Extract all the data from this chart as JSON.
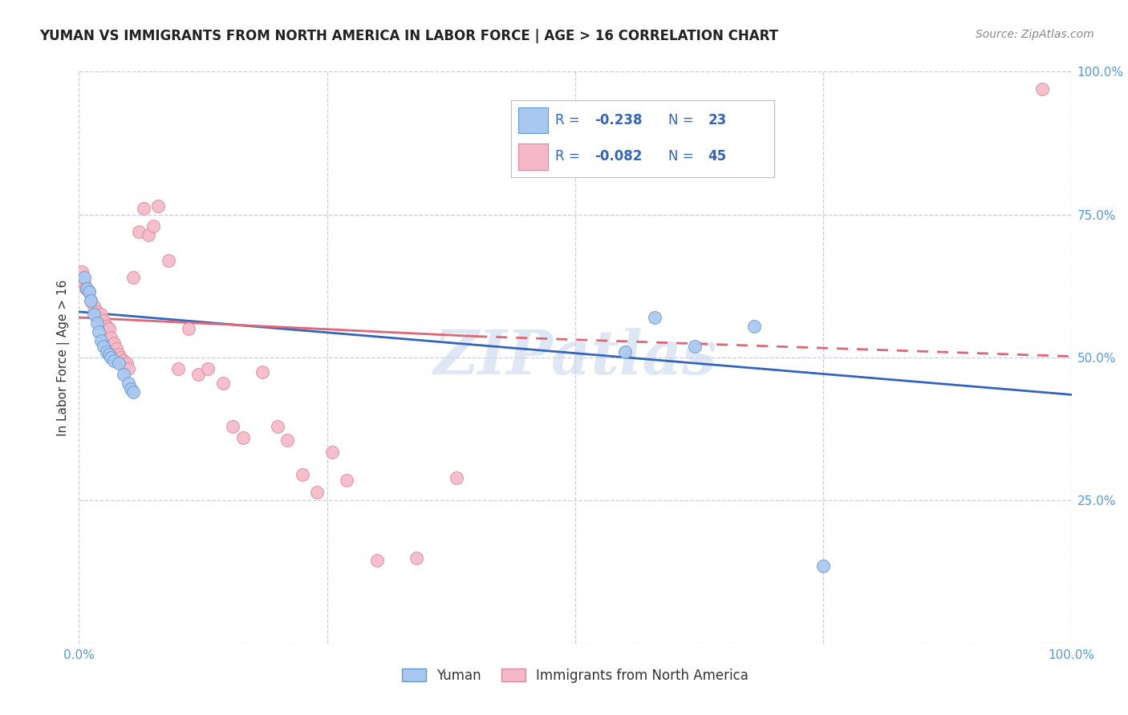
{
  "title": "YUMAN VS IMMIGRANTS FROM NORTH AMERICA IN LABOR FORCE | AGE > 16 CORRELATION CHART",
  "source": "Source: ZipAtlas.com",
  "ylabel": "In Labor Force | Age > 16",
  "watermark": "ZIPatlas",
  "legend_blue_r": "-0.238",
  "legend_blue_n": "23",
  "legend_pink_r": "-0.082",
  "legend_pink_n": "45",
  "legend_blue_label": "Yuman",
  "legend_pink_label": "Immigrants from North America",
  "blue_color": "#A8C8F0",
  "pink_color": "#F5B8C8",
  "blue_edge_color": "#6699CC",
  "pink_edge_color": "#DD8899",
  "blue_line_color": "#3366BB",
  "pink_line_color": "#DD6677",
  "background_color": "#FFFFFF",
  "grid_color": "#CCCCDD",
  "axis_label_color": "#5599DD",
  "legend_text_color": "#3366BB",
  "title_color": "#222222",
  "ylabel_color": "#333333",
  "source_color": "#888888",
  "blue_scatter_x": [
    0.005,
    0.008,
    0.01,
    0.012,
    0.015,
    0.018,
    0.02,
    0.022,
    0.025,
    0.028,
    0.03,
    0.032,
    0.035,
    0.04,
    0.045,
    0.05,
    0.052,
    0.055,
    0.55,
    0.58,
    0.62,
    0.68,
    0.75
  ],
  "blue_scatter_y": [
    0.64,
    0.62,
    0.615,
    0.6,
    0.575,
    0.56,
    0.545,
    0.53,
    0.52,
    0.51,
    0.505,
    0.5,
    0.495,
    0.49,
    0.47,
    0.455,
    0.445,
    0.44,
    0.51,
    0.57,
    0.52,
    0.555,
    0.135
  ],
  "pink_scatter_x": [
    0.003,
    0.005,
    0.007,
    0.01,
    0.012,
    0.015,
    0.018,
    0.02,
    0.022,
    0.025,
    0.028,
    0.03,
    0.032,
    0.035,
    0.038,
    0.04,
    0.042,
    0.045,
    0.048,
    0.05,
    0.055,
    0.06,
    0.065,
    0.07,
    0.075,
    0.08,
    0.09,
    0.1,
    0.11,
    0.12,
    0.13,
    0.145,
    0.155,
    0.165,
    0.185,
    0.2,
    0.21,
    0.225,
    0.24,
    0.255,
    0.27,
    0.3,
    0.34,
    0.38,
    0.97
  ],
  "pink_scatter_y": [
    0.65,
    0.63,
    0.62,
    0.615,
    0.6,
    0.59,
    0.58,
    0.57,
    0.575,
    0.565,
    0.555,
    0.55,
    0.535,
    0.525,
    0.515,
    0.505,
    0.5,
    0.495,
    0.49,
    0.48,
    0.64,
    0.72,
    0.76,
    0.715,
    0.73,
    0.765,
    0.67,
    0.48,
    0.55,
    0.47,
    0.48,
    0.455,
    0.38,
    0.36,
    0.475,
    0.38,
    0.355,
    0.295,
    0.265,
    0.335,
    0.285,
    0.145,
    0.15,
    0.29,
    0.97
  ],
  "xlim": [
    0.0,
    1.0
  ],
  "ylim": [
    0.0,
    1.0
  ],
  "blue_line_x0": 0.0,
  "blue_line_x1": 1.0,
  "blue_line_y0": 0.58,
  "blue_line_y1": 0.435,
  "pink_line_solid_x0": 0.0,
  "pink_line_solid_x1": 0.4,
  "pink_line_solid_y0": 0.57,
  "pink_line_solid_y1": 0.537,
  "pink_line_dash_x0": 0.4,
  "pink_line_dash_x1": 1.0,
  "pink_line_dash_y0": 0.537,
  "pink_line_dash_y1": 0.502
}
